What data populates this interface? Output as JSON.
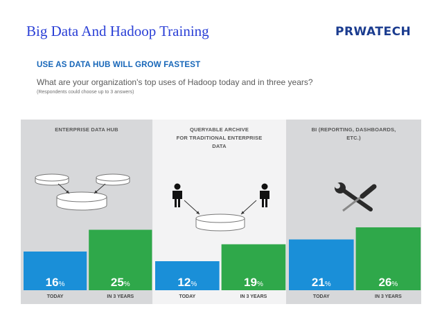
{
  "slide": {
    "title": "Big Data And Hadoop Training",
    "logo": "PRWATECH"
  },
  "survey": {
    "headline": "USE AS DATA HUB WILL GROW FASTEST",
    "question": "What are your organization's top uses of Hadoop today and in three years?",
    "note": "(Respondents could choose up to 3 answers)"
  },
  "colors": {
    "today": "#1a8fd8",
    "in_3_years": "#2fa84a",
    "panel_gray": "#d7d8da",
    "panel_light": "#f3f3f4"
  },
  "icons": {
    "panel_1": "database-icon",
    "panel_2": "person-icon",
    "panel_3": "wrench-screwdriver-icon"
  },
  "chart_data": {
    "type": "bar",
    "categories": [
      "TODAY",
      "IN 3 YEARS"
    ],
    "unit": "%",
    "groups": [
      {
        "title": [
          "ENTERPRISE DATA HUB"
        ],
        "values": [
          16,
          25
        ]
      },
      {
        "title": [
          "QUERYABLE ARCHIVE",
          "FOR TRADITIONAL ENTERPRISE",
          "DATA"
        ],
        "values": [
          12,
          19
        ]
      },
      {
        "title": [
          "BI (REPORTING, DASHBOARDS,",
          "ETC.)"
        ],
        "values": [
          21,
          26
        ]
      }
    ],
    "ylim": [
      0,
      26
    ],
    "grid": false,
    "legend": "none"
  }
}
